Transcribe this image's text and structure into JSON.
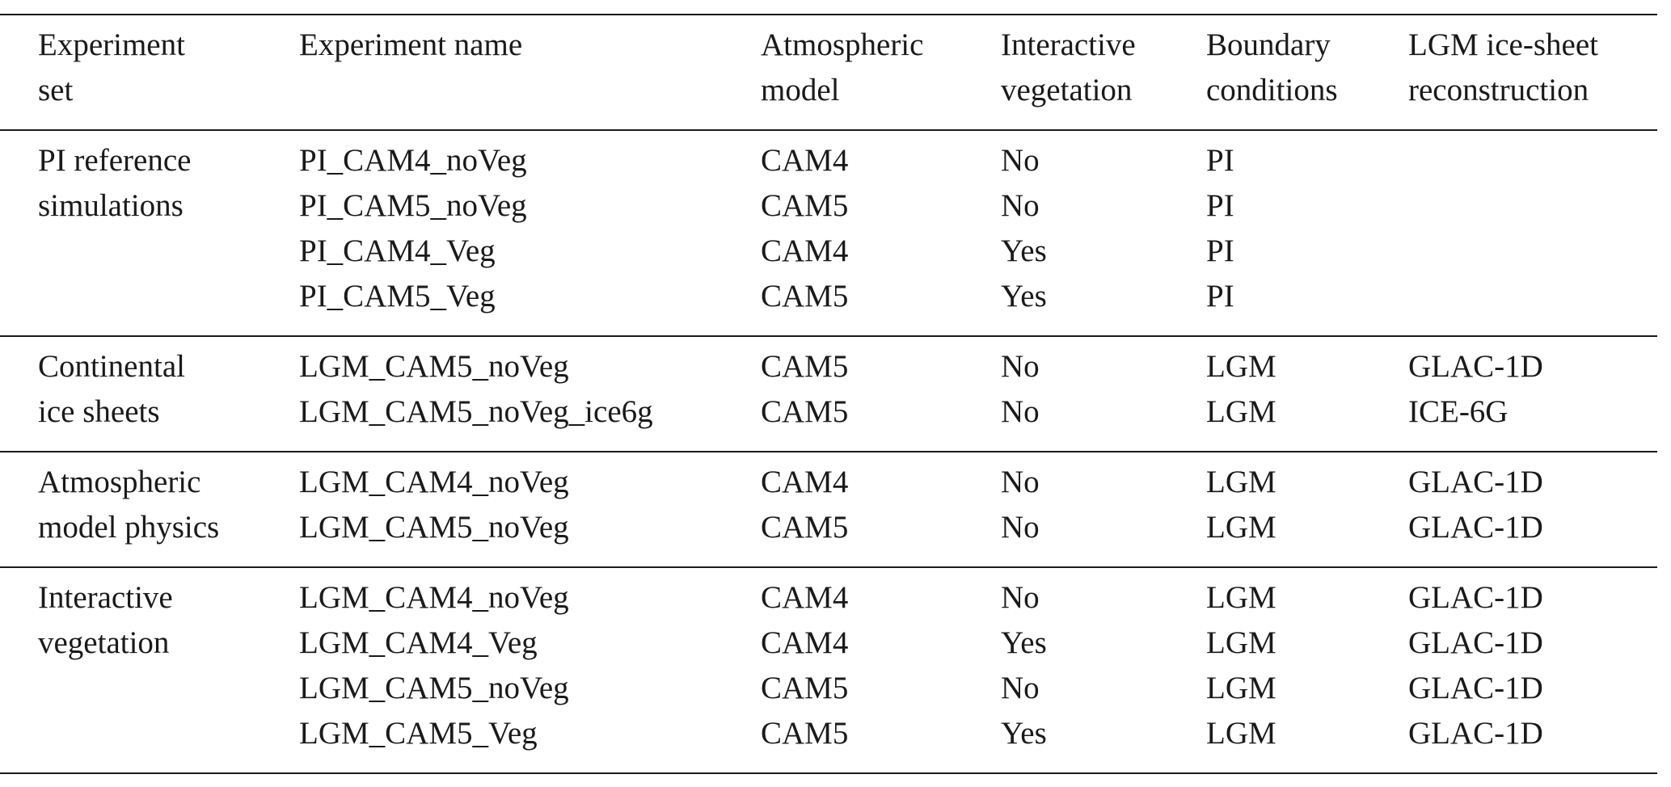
{
  "table": {
    "header": [
      [
        "Experiment",
        "set"
      ],
      [
        "Experiment name"
      ],
      [
        "Atmospheric",
        "model"
      ],
      [
        "Interactive",
        "vegetation"
      ],
      [
        "Boundary",
        "conditions"
      ],
      [
        "LGM ice-sheet",
        "reconstruction"
      ]
    ],
    "groups": [
      {
        "set": [
          "PI reference",
          "simulations"
        ],
        "rows": [
          [
            "PI_CAM4_noVeg",
            "CAM4",
            "No",
            "PI"
          ],
          [
            "PI_CAM5_noVeg",
            "CAM5",
            "No",
            "PI"
          ],
          [
            "PI_CAM4_Veg",
            "CAM4",
            "Yes",
            "PI"
          ],
          [
            "PI_CAM5_Veg",
            "CAM5",
            "Yes",
            "PI"
          ]
        ]
      },
      {
        "set": [
          "Continental",
          "ice sheets"
        ],
        "rows": [
          [
            "LGM_CAM5_noVeg",
            "CAM5",
            "No",
            "LGM",
            "GLAC-1D"
          ],
          [
            "LGM_CAM5_noVeg_ice6g",
            "CAM5",
            "No",
            "LGM",
            "ICE-6G"
          ]
        ]
      },
      {
        "set": [
          "Atmospheric",
          "model physics"
        ],
        "rows": [
          [
            "LGM_CAM4_noVeg",
            "CAM4",
            "No",
            "LGM",
            "GLAC-1D"
          ],
          [
            "LGM_CAM5_noVeg",
            "CAM5",
            "No",
            "LGM",
            "GLAC-1D"
          ]
        ]
      },
      {
        "set": [
          "Interactive",
          "vegetation"
        ],
        "rows": [
          [
            "LGM_CAM4_noVeg",
            "CAM4",
            "No",
            "LGM",
            "GLAC-1D"
          ],
          [
            "LGM_CAM4_Veg",
            "CAM4",
            "Yes",
            "LGM",
            "GLAC-1D"
          ],
          [
            "LGM_CAM5_noVeg",
            "CAM5",
            "No",
            "LGM",
            "GLAC-1D"
          ],
          [
            "LGM_CAM5_Veg",
            "CAM5",
            "Yes",
            "LGM",
            "GLAC-1D"
          ]
        ]
      }
    ]
  }
}
